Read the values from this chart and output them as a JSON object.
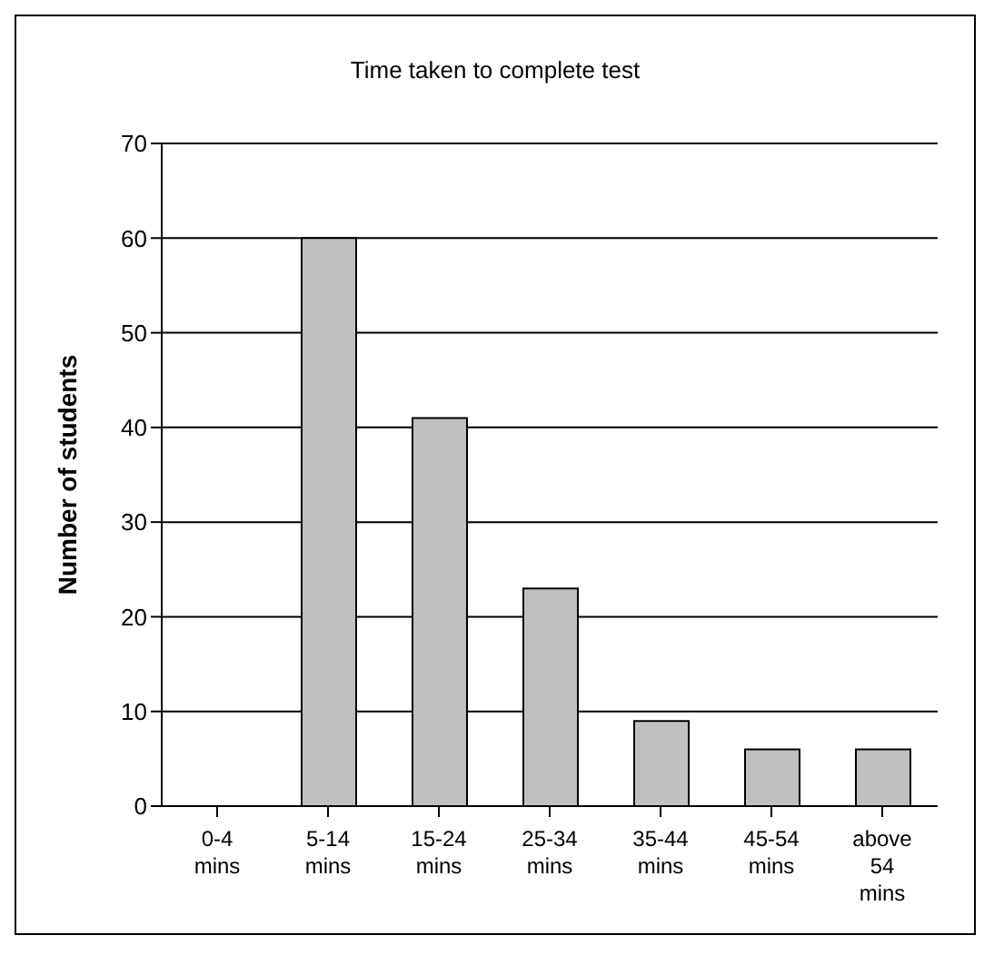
{
  "chart_data": {
    "type": "bar",
    "title": "Time taken to complete test",
    "ylabel": "Number of students",
    "categories": [
      "0-4 mins",
      "5-14 mins",
      "15-24 mins",
      "25-34 mins",
      "35-44 mins",
      "45-54 mins",
      "above 54 mins"
    ],
    "values": [
      0,
      60,
      41,
      23,
      9,
      6,
      6
    ],
    "color": "#c0c0c0",
    "ylim": [
      0,
      70
    ],
    "yticks": [
      0,
      10,
      20,
      30,
      40,
      50,
      60,
      70
    ],
    "grid": "y"
  }
}
